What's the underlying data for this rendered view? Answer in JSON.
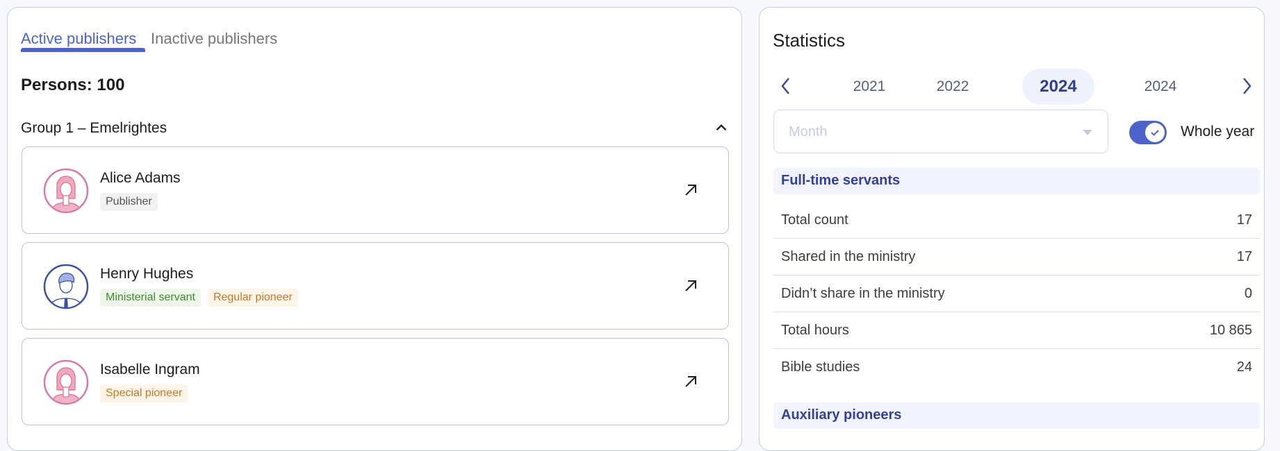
{
  "tabs": [
    {
      "label": "Active publishers",
      "active": true
    },
    {
      "label": "Inactive publishers",
      "active": false
    }
  ],
  "persons": "Persons: 100",
  "group": {
    "label": "Group 1 –  Emelrightes",
    "expanded": true
  },
  "publishers": [
    {
      "name": "Alice Adams",
      "avatar": "female-avatar-icon",
      "tags": [
        {
          "label": "Publisher",
          "color": "gray"
        }
      ]
    },
    {
      "name": "Henry Hughes",
      "avatar": "male-avatar-icon",
      "tags": [
        {
          "label": "Ministerial servant",
          "color": "green"
        },
        {
          "label": "Regular pioneer",
          "color": "orange"
        }
      ]
    },
    {
      "name": "Isabelle Ingram",
      "avatar": "female-avatar-icon",
      "tags": [
        {
          "label": "Special pioneer",
          "color": "orange"
        }
      ]
    }
  ],
  "statistics": {
    "title": "Statistics",
    "years": [
      "2021",
      "2022",
      "2024",
      "2024"
    ],
    "selected_year_index": 2,
    "month_placeholder": "Month",
    "whole_year": {
      "label": "Whole year",
      "checked": true
    },
    "sections": [
      {
        "title": "Full-time servants",
        "rows": [
          {
            "label": "Total count",
            "value": "17"
          },
          {
            "label": "Shared in the ministry",
            "value": "17"
          },
          {
            "label": "Didn’t share in the ministry",
            "value": "0"
          },
          {
            "label": "Total hours",
            "value": "10 865"
          },
          {
            "label": "Bible studies",
            "value": "24"
          }
        ]
      },
      {
        "title": "Auxiliary pioneers",
        "rows": []
      }
    ]
  },
  "colors": {
    "accent": "#4d63c9",
    "section_bg": "#f1f4fe",
    "border": "#c5cde8"
  }
}
